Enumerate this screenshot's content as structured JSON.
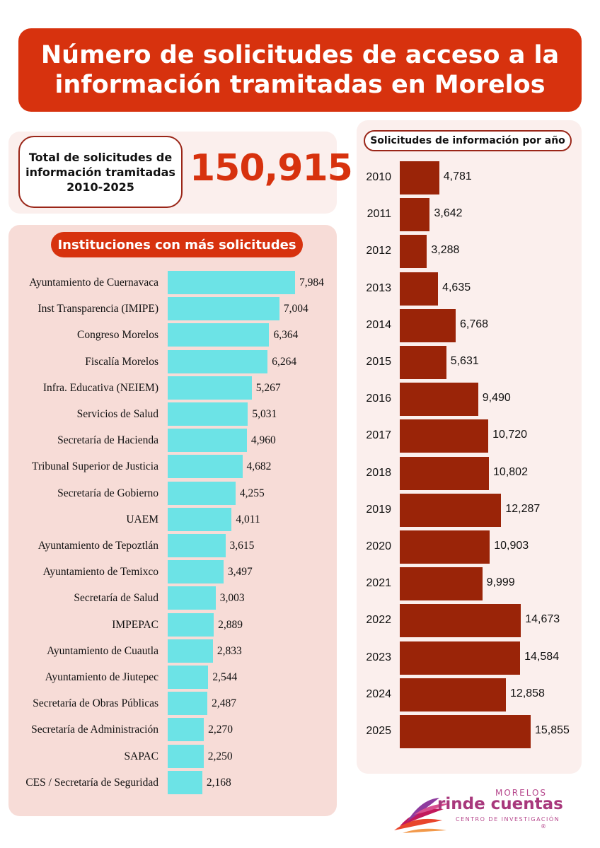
{
  "title": "Número de solicitudes de acceso a la información tramitadas en Morelos",
  "total": {
    "label": "Total de solicitudes de información tramitadas 2010-2025",
    "value": "150,915"
  },
  "colors": {
    "accent": "#d7320e",
    "inst_bar": "#6ce3e6",
    "year_bar": "#9a2408"
  },
  "logo": {
    "top": "MORELOS",
    "main": "rinde cuentas",
    "sub": "CENTRO DE INVESTIGACIÓN",
    "reg": "®"
  },
  "chart_data": [
    {
      "type": "bar",
      "orientation": "horizontal",
      "title": "Instituciones con más solicitudes",
      "categories": [
        "Ayuntamiento de Cuernavaca",
        "Inst Transparencia (IMIPE)",
        "Congreso Morelos",
        "Fiscalía Morelos",
        "Infra. Educativa (NEIEM)",
        "Servicios de Salud",
        "Secretaría de Hacienda",
        "Tribunal Superior de Justicia",
        "Secretaría de Gobierno",
        "UAEM",
        "Ayuntamiento de Tepoztlán",
        "Ayuntamiento de Temixco",
        "Secretaría de Salud",
        "IMPEPAC",
        "Ayuntamiento de Cuautla",
        "Ayuntamiento de Jiutepec",
        "Secretaría de Obras Públicas",
        "Secretaría de Administración",
        "SAPAC",
        "CES / Secretaría de Seguridad"
      ],
      "values": [
        7984,
        7004,
        6364,
        6264,
        5267,
        5031,
        4960,
        4682,
        4255,
        4011,
        3615,
        3497,
        3003,
        2889,
        2833,
        2544,
        2487,
        2270,
        2250,
        2168
      ],
      "labels": [
        "7,984",
        "7,004",
        "6,364",
        "6,264",
        "5,267",
        "5,031",
        "4,960",
        "4,682",
        "4,255",
        "4,011",
        "3,615",
        "3,497",
        "3,003",
        "2,889",
        "2,833",
        "2,544",
        "2,487",
        "2,270",
        "2,250",
        "2,168"
      ],
      "xlim": [
        0,
        7984
      ]
    },
    {
      "type": "bar",
      "orientation": "horizontal",
      "title": "Solicitudes de información por año",
      "categories": [
        "2010",
        "2011",
        "2012",
        "2013",
        "2014",
        "2015",
        "2016",
        "2017",
        "2018",
        "2019",
        "2020",
        "2021",
        "2022",
        "2023",
        "2024",
        "2025"
      ],
      "values": [
        4781,
        3642,
        3288,
        4635,
        6768,
        5631,
        9490,
        10720,
        10802,
        12287,
        10903,
        9999,
        14673,
        14584,
        12858,
        15855
      ],
      "labels": [
        "4,781",
        "3,642",
        "3,288",
        "4,635",
        "6,768",
        "5,631",
        "9,490",
        "10,720",
        "10,802",
        "12,287",
        "10,903",
        "9,999",
        "14,673",
        "14,584",
        "12,858",
        "15,855"
      ],
      "xlim": [
        0,
        15855
      ]
    }
  ]
}
